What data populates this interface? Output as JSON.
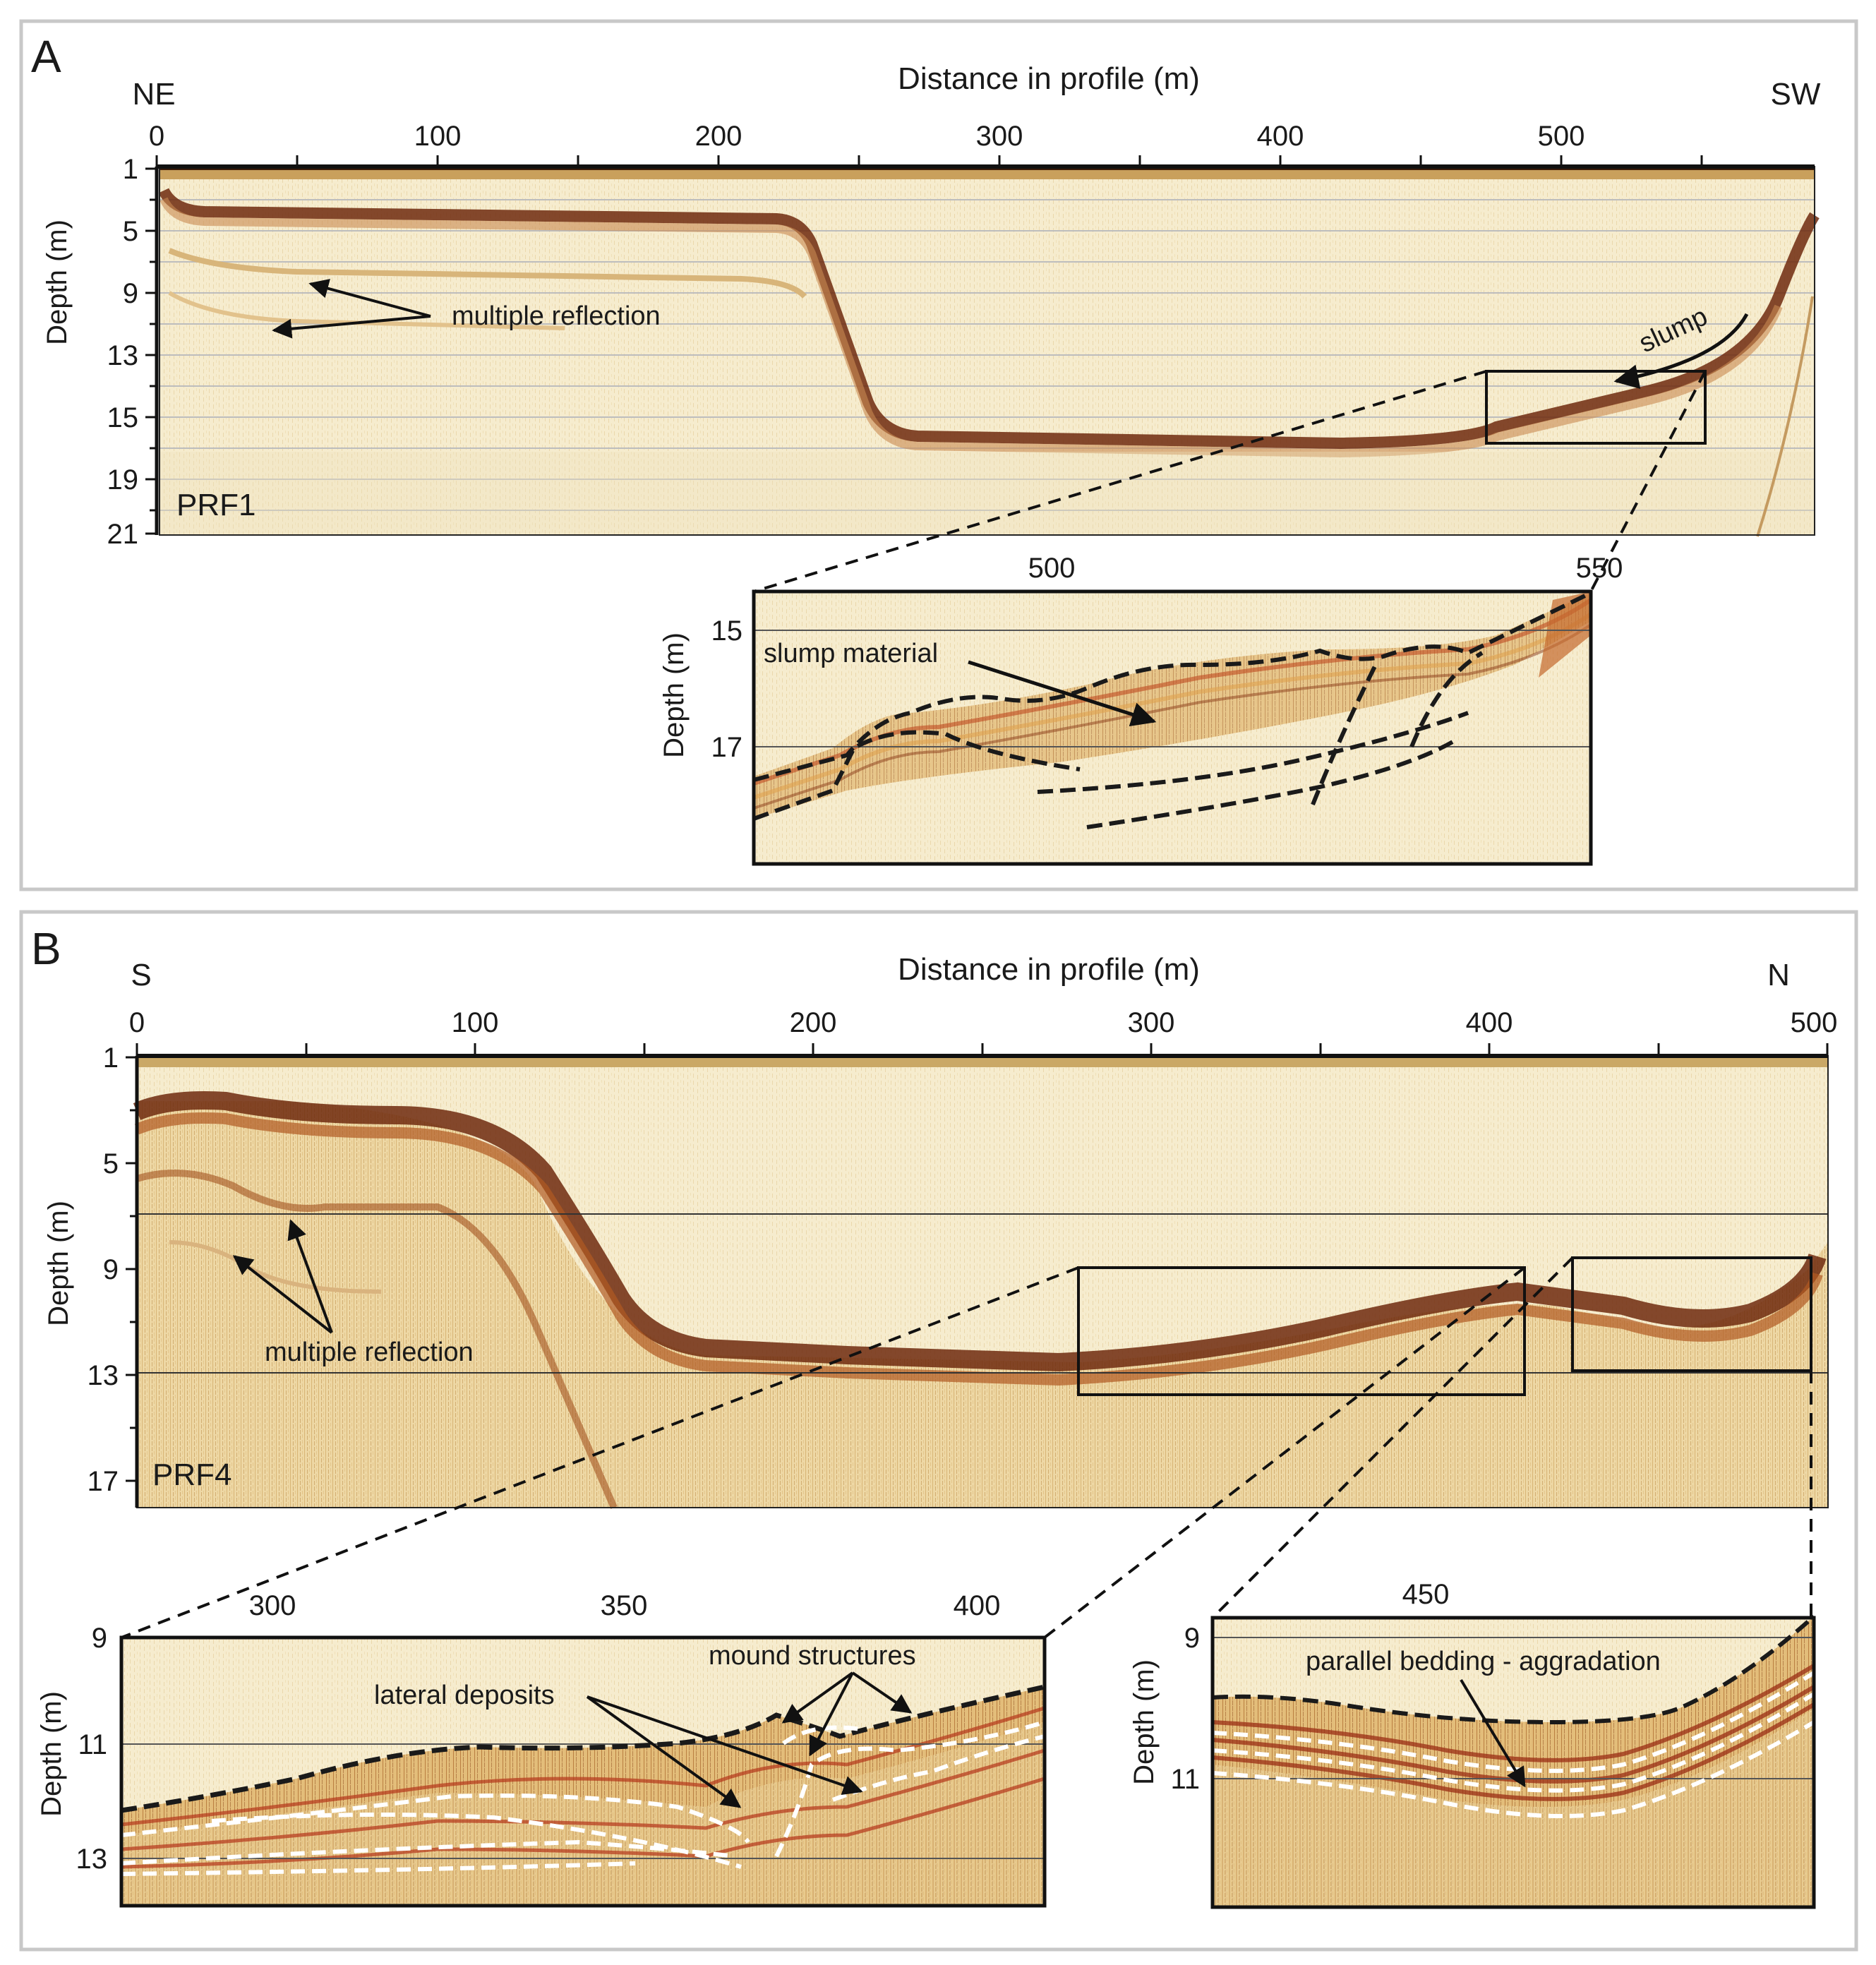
{
  "panel_a": {
    "letter": "A",
    "dir_left": "NE",
    "dir_right": "SW",
    "x_title": "Distance in profile (m)",
    "x_ticks": [
      "0",
      "100",
      "200",
      "300",
      "400",
      "500"
    ],
    "y_title": "Depth (m)",
    "y_ticks": [
      "1",
      "5",
      "9",
      "13",
      "15",
      "19",
      "21"
    ],
    "profile_label": "PRF1",
    "annotations": {
      "multiple_reflection": "multiple reflection",
      "slump": "slump"
    },
    "inset": {
      "x_ticks": [
        "500",
        "550"
      ],
      "y_title": "Depth (m)",
      "y_ticks": [
        "15",
        "17"
      ],
      "annotation": "slump material"
    }
  },
  "panel_b": {
    "letter": "B",
    "dir_left": "S",
    "dir_right": "N",
    "x_title": "Distance in profile (m)",
    "x_ticks": [
      "0",
      "100",
      "200",
      "300",
      "400",
      "500"
    ],
    "y_title": "Depth (m)",
    "y_ticks": [
      "1",
      "5",
      "9",
      "13",
      "17"
    ],
    "profile_label": "PRF4",
    "annotations": {
      "multiple_reflection": "multiple reflection"
    },
    "inset_left": {
      "x_ticks": [
        "300",
        "350",
        "400"
      ],
      "y_title": "Depth (m)",
      "y_ticks": [
        "9",
        "11",
        "13"
      ],
      "annotations": {
        "mound": "mound structures",
        "lateral": "lateral deposits"
      }
    },
    "inset_right": {
      "x_ticks": [
        "450"
      ],
      "y_title": "Depth (m)",
      "y_ticks": [
        "9",
        "11"
      ],
      "annotation": "parallel bedding - aggradation"
    }
  },
  "colors": {
    "background_radar": "#f7efd2",
    "reflector_dark": "#7a3212",
    "reflector_mid": "#b0652a",
    "frame": "#1a1a1a",
    "panel_border": "#c8c8c8"
  }
}
